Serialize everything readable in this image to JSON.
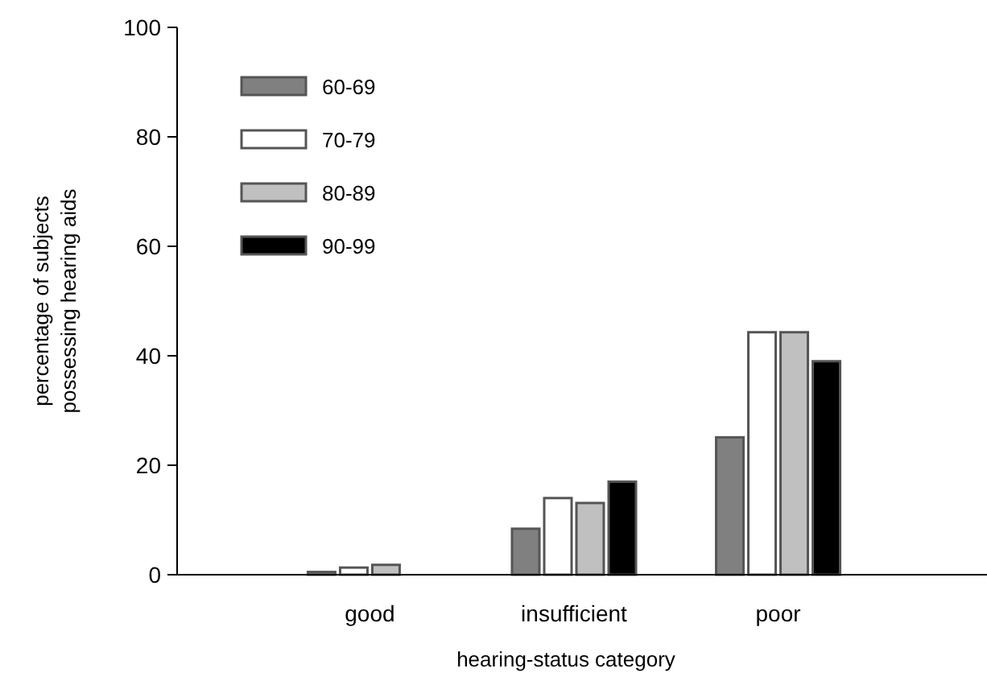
{
  "chart_data": {
    "type": "bar",
    "xlabel": "hearing-status category",
    "ylabel": "percentage of subjects\npossessing hearing aids",
    "categories": [
      "good",
      "insufficient",
      "poor"
    ],
    "series": [
      {
        "name": "60-69",
        "color": "#808080",
        "values": [
          0.5,
          8.4,
          25.1
        ]
      },
      {
        "name": "70-79",
        "color": "#ffffff",
        "values": [
          1.3,
          14,
          44.3
        ]
      },
      {
        "name": "80-89",
        "color": "#c0c0c0",
        "values": [
          1.8,
          13.1,
          44.3
        ]
      },
      {
        "name": "90-99",
        "color": "#000000",
        "values": [
          null,
          17,
          39
        ]
      }
    ],
    "ylim": [
      0,
      100
    ],
    "yticks": [
      0,
      20,
      40,
      60,
      80,
      100
    ],
    "grid": false,
    "legend": "top left"
  }
}
